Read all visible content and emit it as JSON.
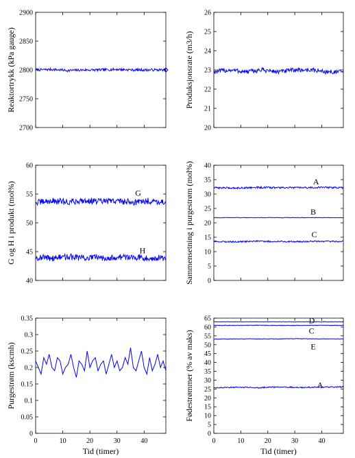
{
  "chart_data": [
    {
      "type": "line",
      "title": "",
      "xlabel": "",
      "ylabel": "Reaktortrykk (kPa gauge)",
      "xlim": [
        0,
        48
      ],
      "ylim": [
        2700,
        2900
      ],
      "xticks": [
        0,
        10,
        20,
        30,
        40
      ],
      "xticklabels_visible": false,
      "yticks": [
        2700,
        2750,
        2800,
        2850,
        2900
      ],
      "grid": false,
      "series": [
        {
          "name": "",
          "color": "#0000ff",
          "mean": 2800,
          "amplitude": 2.2,
          "x": [
            0,
            6,
            12,
            18,
            24,
            30,
            36,
            42,
            48
          ],
          "y": [
            2800,
            2801,
            2799,
            2800,
            2800,
            2801,
            2800,
            2800,
            2800
          ]
        }
      ],
      "end_marker": {
        "x": 48,
        "y": 2800,
        "shape": "diamond"
      },
      "annotations": []
    },
    {
      "type": "line",
      "title": "",
      "xlabel": "",
      "ylabel": "Produksjonsrate (m3/h)",
      "xlim": [
        0,
        48
      ],
      "ylim": [
        20,
        26
      ],
      "xticks": [
        0,
        10,
        20,
        30,
        40
      ],
      "xticklabels_visible": false,
      "yticks": [
        20,
        21,
        22,
        23,
        24,
        25,
        26
      ],
      "grid": false,
      "series": [
        {
          "name": "",
          "color": "#0000ff",
          "mean": 22.95,
          "amplitude": 0.12,
          "x": [
            0,
            6,
            12,
            18,
            24,
            30,
            36,
            42,
            48
          ],
          "y": [
            22.9,
            23.0,
            22.9,
            23.0,
            22.9,
            23.0,
            23.0,
            22.9,
            22.9
          ]
        }
      ],
      "annotations": []
    },
    {
      "type": "line",
      "title": "",
      "xlabel": "",
      "ylabel": "G og H i produkt (mol%)",
      "xlim": [
        0,
        48
      ],
      "ylim": [
        40,
        60
      ],
      "xticks": [
        0,
        10,
        20,
        30,
        40
      ],
      "xticklabels_visible": false,
      "yticks": [
        40,
        45,
        50,
        55,
        60
      ],
      "grid": false,
      "series": [
        {
          "name": "G",
          "color": "#0000ff",
          "mean": 53.7,
          "amplitude": 0.55,
          "x": [
            0,
            6,
            12,
            18,
            24,
            30,
            36,
            42,
            48
          ],
          "y": [
            53.5,
            53.8,
            53.6,
            53.9,
            53.7,
            53.8,
            53.6,
            53.8,
            53.6
          ]
        },
        {
          "name": "H",
          "color": "#0000ff",
          "mean": 44.0,
          "amplitude": 0.55,
          "x": [
            0,
            6,
            12,
            18,
            24,
            30,
            36,
            42,
            48
          ],
          "y": [
            44.0,
            43.9,
            44.1,
            43.9,
            44.0,
            44.0,
            44.1,
            43.9,
            43.9
          ]
        }
      ],
      "annotations": [
        {
          "text": "G",
          "x": 36.7,
          "y": 55.2
        },
        {
          "text": "H",
          "x": 38.3,
          "y": 45.2
        }
      ]
    },
    {
      "type": "line",
      "title": "",
      "xlabel": "",
      "ylabel": "Sammensetning i purgestrøm (mol%)",
      "xlim": [
        0,
        48
      ],
      "ylim": [
        0,
        40
      ],
      "xticks": [
        0,
        10,
        20,
        30,
        40
      ],
      "xticklabels_visible": false,
      "yticks": [
        0,
        5,
        10,
        15,
        20,
        25,
        30,
        35,
        40
      ],
      "grid": false,
      "series": [
        {
          "name": "A",
          "color": "#0000ff",
          "mean": 32.2,
          "amplitude": 0.3,
          "x": [
            0,
            8,
            16,
            24,
            32,
            40,
            48
          ],
          "y": [
            32.2,
            32.1,
            32.3,
            32.2,
            32.2,
            32.3,
            32.2
          ]
        },
        {
          "name": "B",
          "color": "#0000ff",
          "mean": 21.8,
          "amplitude": 0.08,
          "x": [
            0,
            8,
            16,
            24,
            32,
            40,
            48
          ],
          "y": [
            21.8,
            21.8,
            21.8,
            21.8,
            21.8,
            21.8,
            21.8
          ]
        },
        {
          "name": "C",
          "color": "#0000ff",
          "mean": 13.5,
          "amplitude": 0.25,
          "x": [
            0,
            8,
            16,
            24,
            32,
            40,
            48
          ],
          "y": [
            13.5,
            13.4,
            13.6,
            13.5,
            13.5,
            13.6,
            13.5
          ]
        }
      ],
      "annotations": [
        {
          "text": "A",
          "x": 36.8,
          "y": 34.3
        },
        {
          "text": "B",
          "x": 35.8,
          "y": 23.8
        },
        {
          "text": "C",
          "x": 36.2,
          "y": 15.9
        }
      ]
    },
    {
      "type": "line",
      "title": "",
      "xlabel": "Tid (timer)",
      "ylabel": "Purgestrøm (kscmh)",
      "xlim": [
        0,
        48
      ],
      "ylim": [
        0,
        0.35
      ],
      "xticks": [
        0,
        10,
        20,
        30,
        40
      ],
      "xticklabels_visible": true,
      "yticks": [
        0,
        0.05,
        0.1,
        0.15,
        0.2,
        0.25,
        0.3,
        0.35
      ],
      "grid": false,
      "series": [
        {
          "name": "",
          "color": "#0000ff",
          "x": [
            0,
            1,
            2,
            3,
            4,
            5,
            6,
            7,
            8,
            9,
            10,
            11,
            12,
            13,
            14,
            15,
            16,
            17,
            18,
            19,
            20,
            21,
            22,
            23,
            24,
            25,
            26,
            27,
            28,
            29,
            30,
            31,
            32,
            33,
            34,
            35,
            36,
            37,
            38,
            39,
            40,
            41,
            42,
            43,
            44,
            45,
            46,
            47,
            48
          ],
          "y": [
            0.22,
            0.2,
            0.18,
            0.23,
            0.21,
            0.24,
            0.2,
            0.19,
            0.23,
            0.22,
            0.18,
            0.2,
            0.21,
            0.24,
            0.2,
            0.17,
            0.22,
            0.21,
            0.19,
            0.25,
            0.2,
            0.22,
            0.23,
            0.19,
            0.21,
            0.22,
            0.18,
            0.21,
            0.24,
            0.2,
            0.22,
            0.19,
            0.2,
            0.23,
            0.21,
            0.26,
            0.2,
            0.19,
            0.22,
            0.25,
            0.2,
            0.18,
            0.23,
            0.19,
            0.21,
            0.24,
            0.2,
            0.22,
            0.19
          ]
        }
      ],
      "annotations": []
    },
    {
      "type": "line",
      "title": "",
      "xlabel": "Tid (timer)",
      "ylabel": "Fødestrømmer (% av maks)",
      "xlim": [
        0,
        48
      ],
      "ylim": [
        0,
        65
      ],
      "xticks": [
        0,
        10,
        20,
        30,
        40
      ],
      "xticklabels_visible": true,
      "yticks": [
        0,
        5,
        10,
        15,
        20,
        25,
        30,
        35,
        40,
        45,
        50,
        55,
        60,
        65
      ],
      "grid": false,
      "series": [
        {
          "name": "D",
          "color": "#0000ff",
          "mean": 62.9,
          "amplitude": 0.12,
          "x": [
            0,
            8,
            16,
            24,
            32,
            40,
            48
          ],
          "y": [
            62.9,
            62.9,
            62.9,
            62.9,
            62.9,
            62.9,
            62.9
          ]
        },
        {
          "name": "C",
          "color": "#0000ff",
          "mean": 60.9,
          "amplitude": 0.15,
          "x": [
            0,
            8,
            16,
            24,
            32,
            40,
            48
          ],
          "y": [
            60.9,
            60.9,
            61.0,
            60.9,
            60.9,
            61.0,
            60.9
          ]
        },
        {
          "name": "E",
          "color": "#0000ff",
          "mean": 53.3,
          "amplitude": 0.15,
          "x": [
            0,
            8,
            16,
            24,
            32,
            40,
            48
          ],
          "y": [
            53.2,
            53.3,
            53.3,
            53.3,
            53.4,
            53.3,
            53.3
          ]
        },
        {
          "name": "A",
          "color": "#0000ff",
          "mean": 25.9,
          "amplitude": 0.35,
          "x": [
            0,
            8,
            16,
            24,
            32,
            40,
            48
          ],
          "y": [
            25.8,
            26.0,
            25.8,
            26.1,
            25.9,
            26.0,
            26.2
          ]
        }
      ],
      "annotations": [
        {
          "text": "D",
          "x": 35.2,
          "y": 63.6
        },
        {
          "text": "C",
          "x": 35.2,
          "y": 57.9
        },
        {
          "text": "E",
          "x": 35.9,
          "y": 48.9
        },
        {
          "text": "A",
          "x": 38.3,
          "y": 27.2
        }
      ]
    }
  ]
}
